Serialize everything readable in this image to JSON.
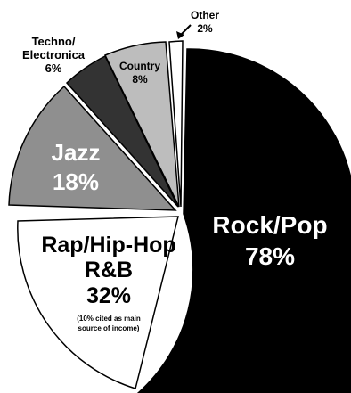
{
  "chart_data": {
    "type": "pie",
    "slices": [
      {
        "name": "Rock/Pop",
        "value": "78%",
        "color": "#000000",
        "text_color": "#ffffff"
      },
      {
        "name": "Rap/Hip-Hop R&B",
        "value": "32%",
        "note": "(10% cited as main source of income)",
        "color": "#ffffff",
        "text_color": "#000000"
      },
      {
        "name": "Jazz",
        "value": "18%",
        "color": "#8f8f8f",
        "text_color": "#ffffff"
      },
      {
        "name": "Techno/ Electronica",
        "value": "6%",
        "color": "#333333",
        "text_color": "#000000"
      },
      {
        "name": "Country",
        "value": "8%",
        "color": "#bdbdbd",
        "text_color": "#000000"
      },
      {
        "name": "Other",
        "value": "2%",
        "color": "#ffffff",
        "text_color": "#000000"
      }
    ]
  },
  "labels": {
    "rock_1": "Rock/Pop",
    "rock_2": "78%",
    "rap_1": "Rap/Hip-Hop",
    "rap_2": "R&B",
    "rap_3": "32%",
    "rap_note_1": "(10% cited as main",
    "rap_note_2": "source of income)",
    "jazz_1": "Jazz",
    "jazz_2": "18%",
    "techno_1": "Techno/",
    "techno_2": "Electronica",
    "techno_3": "6%",
    "country_1": "Country",
    "country_2": "8%",
    "other_1": "Other",
    "other_2": "2%"
  }
}
